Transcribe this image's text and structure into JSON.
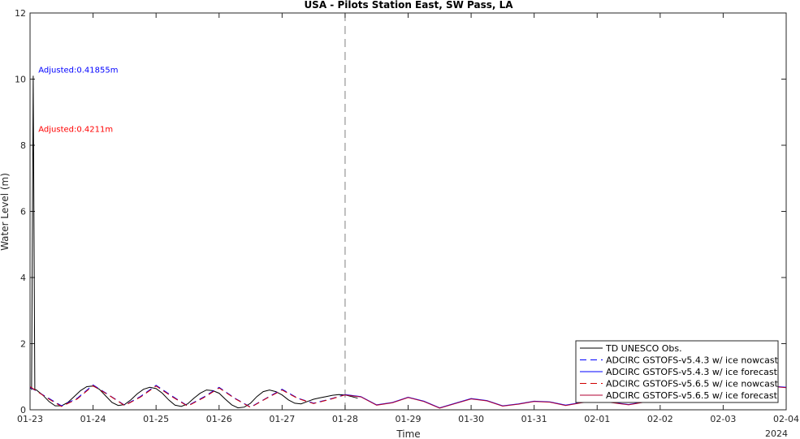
{
  "chart_data": {
    "type": "line",
    "title": "USA - Pilots Station East, SW Pass, LA",
    "xlabel": "Time",
    "ylabel": "Water Level (m)",
    "year_label": "2024",
    "x_ticks": [
      "01-23",
      "01-24",
      "01-25",
      "01-26",
      "01-27",
      "01-28",
      "01-29",
      "01-30",
      "01-31",
      "02-01",
      "02-02",
      "02-03",
      "02-04"
    ],
    "x_range_days": [
      0,
      12
    ],
    "ylim": [
      0,
      12
    ],
    "y_ticks": [
      0,
      2,
      4,
      6,
      8,
      10,
      12
    ],
    "vline_day": 5,
    "legend_position": "bottom-right",
    "annotations": [
      {
        "text": "Adjusted:0.41855m",
        "color": "#0000ff",
        "day": 0.3,
        "y": 10.2
      },
      {
        "text": "Adjusted:0.4211m",
        "color": "#ff0000",
        "day": 0.3,
        "y": 8.4
      }
    ],
    "series": [
      {
        "name": "TD UNESCO Obs.",
        "color": "#000000",
        "dash": "solid",
        "x": [
          0,
          0.1,
          0.2,
          0.3,
          0.4,
          0.5,
          0.6,
          0.7,
          0.8,
          0.9,
          1.0,
          1.1,
          1.2,
          1.3,
          1.4,
          1.5,
          1.6,
          1.7,
          1.8,
          1.9,
          2.0,
          2.1,
          2.2,
          2.3,
          2.4,
          2.5,
          2.6,
          2.7,
          2.8,
          2.9,
          3.0,
          3.1,
          3.2,
          3.3,
          3.4,
          3.5,
          3.6,
          3.7,
          3.8,
          3.9,
          4.0,
          4.1,
          4.2,
          4.3,
          4.4,
          4.5,
          4.6,
          4.7,
          4.8,
          4.9,
          5.0,
          5.1,
          5.2
        ],
        "y": [
          0.66,
          0.6,
          0.45,
          0.25,
          0.12,
          0.12,
          0.22,
          0.4,
          0.58,
          0.7,
          0.72,
          0.62,
          0.42,
          0.22,
          0.13,
          0.16,
          0.3,
          0.48,
          0.62,
          0.68,
          0.64,
          0.5,
          0.3,
          0.14,
          0.1,
          0.18,
          0.35,
          0.5,
          0.6,
          0.58,
          0.5,
          0.32,
          0.15,
          0.06,
          0.08,
          0.2,
          0.4,
          0.55,
          0.6,
          0.55,
          0.45,
          0.3,
          0.2,
          0.18,
          0.25,
          0.32,
          0.36,
          0.4,
          0.44,
          0.46,
          0.45,
          0.4,
          0.35
        ],
        "spike": {
          "day": 0.05,
          "y": 10.1
        }
      },
      {
        "name": "ADCIRC GSTOFS-v5.4.3  w/ ice nowcast",
        "color": "#0000ff",
        "dash": "dashed",
        "x": [
          0,
          0.25,
          0.5,
          0.75,
          1.0,
          1.25,
          1.5,
          1.75,
          2.0,
          2.25,
          2.5,
          2.75,
          3.0,
          3.25,
          3.5,
          3.75,
          4.0,
          4.25,
          4.5,
          4.75,
          5.0
        ],
        "y": [
          0.68,
          0.4,
          0.12,
          0.35,
          0.75,
          0.45,
          0.14,
          0.4,
          0.74,
          0.42,
          0.12,
          0.38,
          0.68,
          0.35,
          0.08,
          0.35,
          0.62,
          0.35,
          0.2,
          0.32,
          0.46
        ]
      },
      {
        "name": "ADCIRC GSTOFS-v5.4.3  w/ ice forecast",
        "color": "#0000ff",
        "dash": "solid",
        "x": [
          5.0,
          5.25,
          5.5,
          5.75,
          6.0,
          6.25,
          6.5,
          6.75,
          7.0,
          7.25,
          7.5,
          7.75,
          8.0,
          8.25,
          8.5,
          8.75,
          9.0,
          9.25,
          9.5,
          9.75,
          10.0,
          10.25,
          10.5,
          10.75,
          11.0,
          11.25,
          11.5,
          11.75,
          12.0
        ],
        "y": [
          0.46,
          0.4,
          0.15,
          0.22,
          0.38,
          0.26,
          0.06,
          0.2,
          0.34,
          0.28,
          0.12,
          0.18,
          0.26,
          0.24,
          0.14,
          0.22,
          0.28,
          0.22,
          0.16,
          0.24,
          0.4,
          0.5,
          0.55,
          0.58,
          0.62,
          0.66,
          0.7,
          0.72,
          0.68
        ]
      },
      {
        "name": "ADCIRC GSTOFS-v5.6.5  w/ ice nowcast",
        "color": "#d00000",
        "dash": "dashed",
        "x": [
          0,
          0.25,
          0.5,
          0.75,
          1.0,
          1.25,
          1.5,
          1.75,
          2.0,
          2.25,
          2.5,
          2.75,
          3.0,
          3.25,
          3.5,
          3.75,
          4.0,
          4.25,
          4.5,
          4.75,
          5.0
        ],
        "y": [
          0.7,
          0.38,
          0.1,
          0.33,
          0.73,
          0.44,
          0.13,
          0.38,
          0.72,
          0.4,
          0.11,
          0.36,
          0.66,
          0.34,
          0.07,
          0.34,
          0.6,
          0.34,
          0.19,
          0.31,
          0.45
        ]
      },
      {
        "name": "ADCIRC GSTOFS-v5.6.5  w/ ice forecast",
        "color": "#b00030",
        "dash": "solid",
        "x": [
          5.0,
          5.25,
          5.5,
          5.75,
          6.0,
          6.25,
          6.5,
          6.75,
          7.0,
          7.25,
          7.5,
          7.75,
          8.0,
          8.25,
          8.5,
          8.75,
          9.0,
          9.25,
          9.5,
          9.75,
          10.0,
          10.25,
          10.5,
          10.75,
          11.0,
          11.25,
          11.5,
          11.75,
          12.0
        ],
        "y": [
          0.45,
          0.39,
          0.14,
          0.21,
          0.37,
          0.25,
          0.05,
          0.19,
          0.33,
          0.27,
          0.11,
          0.17,
          0.25,
          0.23,
          0.13,
          0.21,
          0.27,
          0.21,
          0.15,
          0.23,
          0.39,
          0.49,
          0.54,
          0.57,
          0.61,
          0.65,
          0.69,
          0.71,
          0.67
        ]
      }
    ]
  }
}
